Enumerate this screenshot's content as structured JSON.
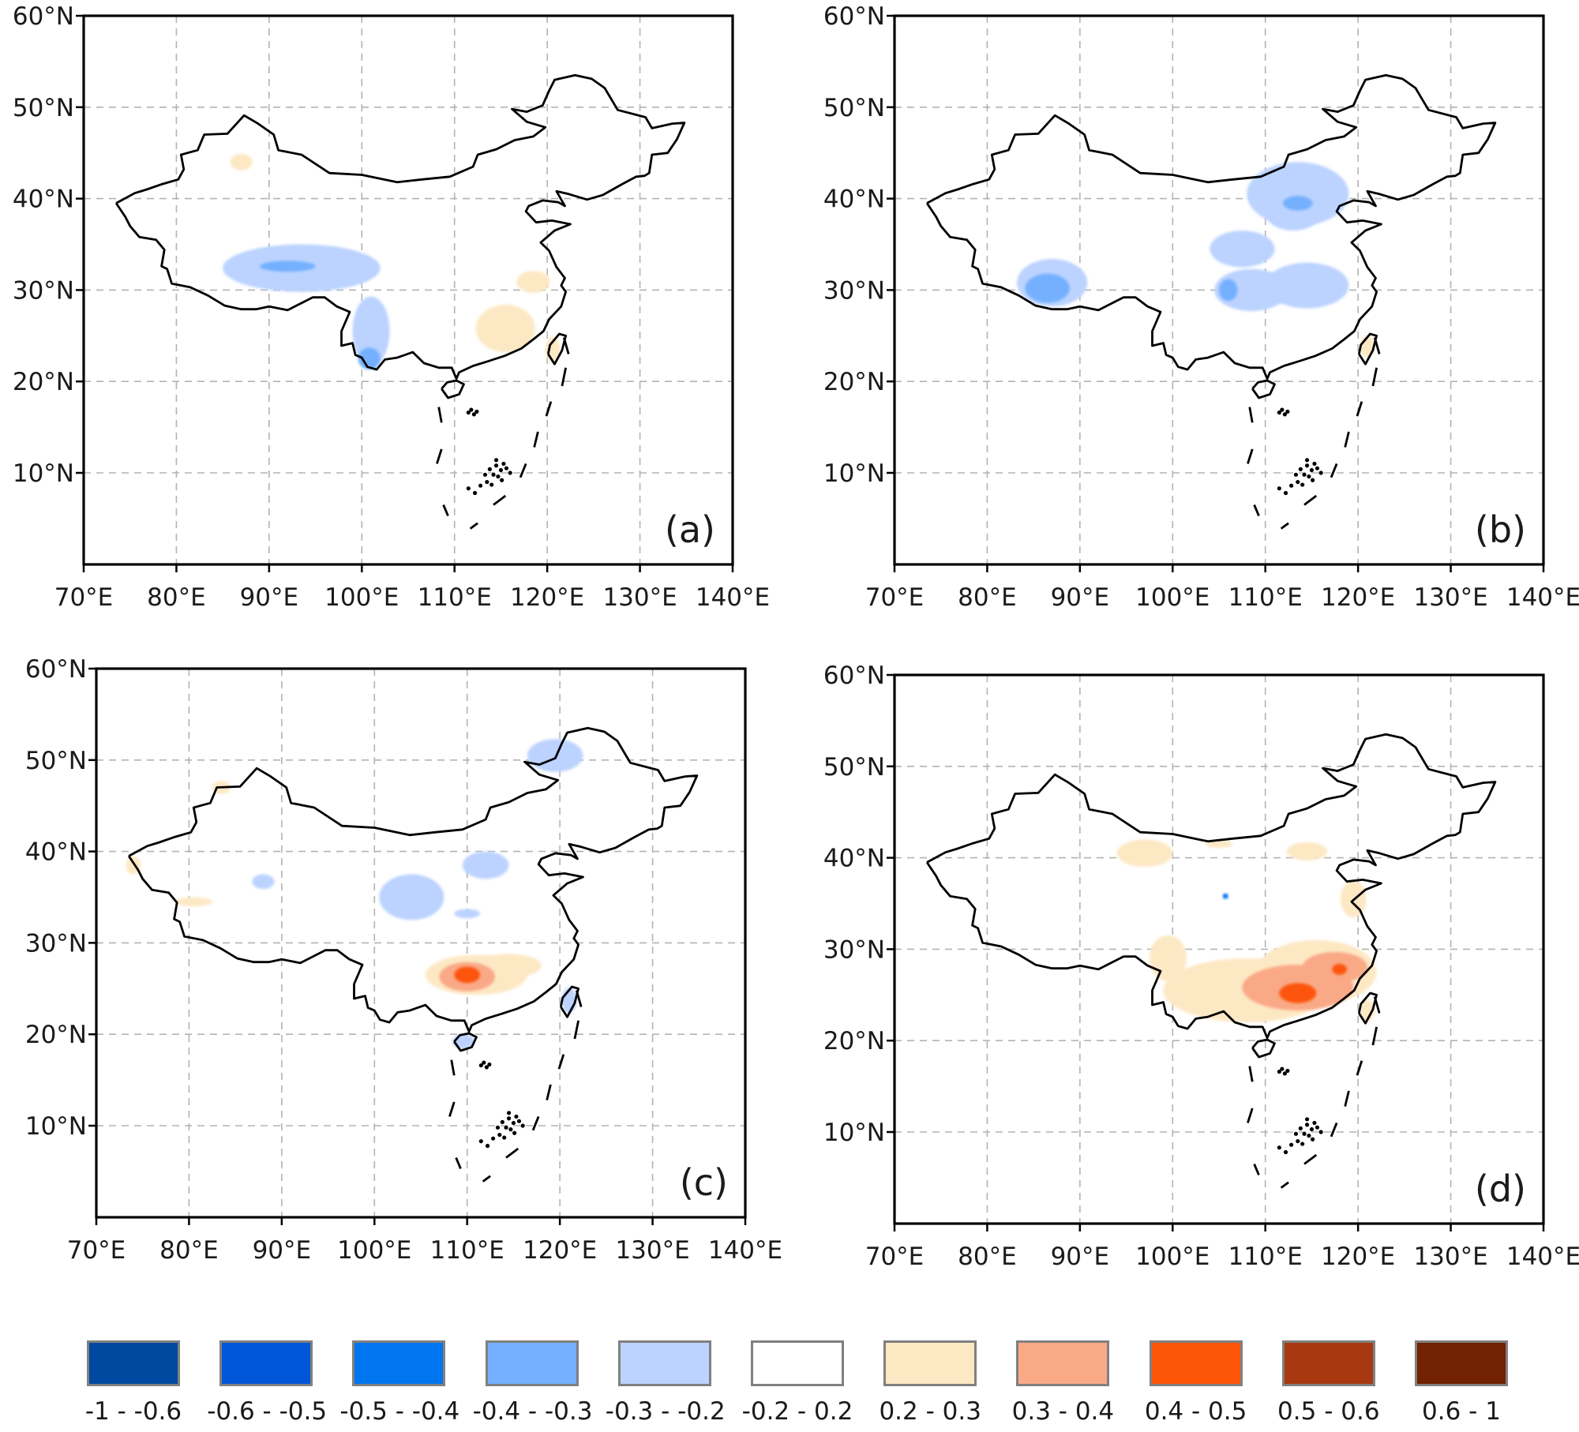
{
  "figure": {
    "x_tick_labels": [
      "70°E",
      "80°E",
      "90°E",
      "100°E",
      "110°E",
      "120°E",
      "130°E",
      "140°E"
    ],
    "y_tick_labels": [
      "60°N",
      "50°N",
      "40°N",
      "30°N",
      "20°N",
      "10°N"
    ],
    "lon_range": [
      70,
      140
    ],
    "lat_range": [
      0,
      60
    ]
  },
  "panels": [
    {
      "id": "a",
      "label": "(a)",
      "blobs": [
        {
          "lon": 93.5,
          "lat": 32.4,
          "rlon": 8.5,
          "rlat": 2.6,
          "class": "-0.3 - -0.2"
        },
        {
          "lon": 101.0,
          "lat": 25.5,
          "rlon": 2.0,
          "rlat": 3.8,
          "class": "-0.3 - -0.2"
        },
        {
          "lon": 100.8,
          "lat": 22.5,
          "rlon": 1.2,
          "rlat": 1.2,
          "class": "-0.4 - -0.3"
        },
        {
          "lon": 92.0,
          "lat": 32.6,
          "rlon": 3.0,
          "rlat": 0.6,
          "class": "-0.4 - -0.3"
        },
        {
          "lon": 115.5,
          "lat": 25.8,
          "rlon": 3.2,
          "rlat": 2.6,
          "class": "0.2 - 0.3"
        },
        {
          "lon": 118.5,
          "lat": 30.9,
          "rlon": 1.8,
          "rlat": 1.2,
          "class": "0.2 - 0.3"
        },
        {
          "lon": 87.0,
          "lat": 44.0,
          "rlon": 1.2,
          "rlat": 0.9,
          "class": "0.2 - 0.3"
        },
        {
          "lon": 120.6,
          "lat": 23.5,
          "rlon": 0.8,
          "rlat": 1.4,
          "class": "0.2 - 0.3"
        }
      ]
    },
    {
      "id": "b",
      "label": "(b)",
      "blobs": [
        {
          "lon": 113.5,
          "lat": 40.5,
          "rlon": 5.5,
          "rlat": 3.5,
          "class": "-0.3 - -0.2"
        },
        {
          "lon": 113.0,
          "lat": 38.5,
          "rlon": 3.0,
          "rlat": 2.0,
          "class": "-0.3 - -0.2"
        },
        {
          "lon": 107.5,
          "lat": 34.5,
          "rlon": 3.5,
          "rlat": 2.0,
          "class": "-0.3 - -0.2"
        },
        {
          "lon": 108.5,
          "lat": 30.0,
          "rlon": 4.0,
          "rlat": 2.3,
          "class": "-0.3 - -0.2"
        },
        {
          "lon": 114.5,
          "lat": 30.5,
          "rlon": 4.5,
          "rlat": 2.5,
          "class": "-0.3 - -0.2"
        },
        {
          "lon": 87.0,
          "lat": 30.8,
          "rlon": 3.8,
          "rlat": 2.6,
          "class": "-0.3 - -0.2"
        },
        {
          "lon": 86.5,
          "lat": 30.2,
          "rlon": 2.4,
          "rlat": 1.6,
          "class": "-0.4 - -0.3"
        },
        {
          "lon": 113.5,
          "lat": 39.5,
          "rlon": 1.6,
          "rlat": 0.8,
          "class": "-0.4 - -0.3"
        },
        {
          "lon": 106.0,
          "lat": 30.0,
          "rlon": 1.0,
          "rlat": 1.2,
          "class": "-0.4 - -0.3"
        },
        {
          "lon": 121.0,
          "lat": 23.8,
          "rlon": 0.8,
          "rlat": 1.2,
          "class": "0.2 - 0.3"
        }
      ]
    },
    {
      "id": "c",
      "label": "(c)",
      "blobs": [
        {
          "lon": 111.0,
          "lat": 26.5,
          "rlon": 5.5,
          "rlat": 2.2,
          "class": "0.2 - 0.3"
        },
        {
          "lon": 114.5,
          "lat": 27.5,
          "rlon": 3.5,
          "rlat": 1.3,
          "class": "0.2 - 0.3"
        },
        {
          "lon": 110.0,
          "lat": 26.3,
          "rlon": 3.0,
          "rlat": 1.6,
          "class": "0.3 - 0.4"
        },
        {
          "lon": 110.0,
          "lat": 26.5,
          "rlon": 1.4,
          "rlat": 0.9,
          "class": "0.4 - 0.5"
        },
        {
          "lon": 104.0,
          "lat": 35.0,
          "rlon": 3.5,
          "rlat": 2.5,
          "class": "-0.3 - -0.2"
        },
        {
          "lon": 112.0,
          "lat": 38.5,
          "rlon": 2.5,
          "rlat": 1.5,
          "class": "-0.3 - -0.2"
        },
        {
          "lon": 110.0,
          "lat": 33.2,
          "rlon": 1.4,
          "rlat": 0.5,
          "class": "-0.3 - -0.2"
        },
        {
          "lon": 119.5,
          "lat": 50.5,
          "rlon": 3.0,
          "rlat": 1.8,
          "class": "-0.3 - -0.2"
        },
        {
          "lon": 88.0,
          "lat": 36.7,
          "rlon": 1.2,
          "rlat": 0.8,
          "class": "-0.3 - -0.2"
        },
        {
          "lon": 121.0,
          "lat": 23.7,
          "rlon": 0.8,
          "rlat": 1.4,
          "class": "-0.3 - -0.2"
        },
        {
          "lon": 109.6,
          "lat": 19.2,
          "rlon": 1.2,
          "rlat": 0.8,
          "class": "-0.3 - -0.2"
        },
        {
          "lon": 80.5,
          "lat": 34.5,
          "rlon": 2.0,
          "rlat": 0.5,
          "class": "0.2 - 0.3"
        },
        {
          "lon": 83.5,
          "lat": 47.0,
          "rlon": 1.0,
          "rlat": 0.7,
          "class": "0.2 - 0.3"
        },
        {
          "lon": 74.0,
          "lat": 38.5,
          "rlon": 0.8,
          "rlat": 1.0,
          "class": "0.2 - 0.3"
        }
      ]
    },
    {
      "id": "d",
      "label": "(d)",
      "blobs": [
        {
          "lon": 108.0,
          "lat": 25.5,
          "rlon": 9.0,
          "rlat": 3.5,
          "class": "0.2 - 0.3"
        },
        {
          "lon": 115.5,
          "lat": 27.5,
          "rlon": 6.5,
          "rlat": 3.5,
          "class": "0.2 - 0.3"
        },
        {
          "lon": 99.5,
          "lat": 29.0,
          "rlon": 2.0,
          "rlat": 2.5,
          "class": "0.2 - 0.3"
        },
        {
          "lon": 97.0,
          "lat": 40.5,
          "rlon": 3.0,
          "rlat": 1.5,
          "class": "0.2 - 0.3"
        },
        {
          "lon": 114.5,
          "lat": 40.7,
          "rlon": 2.2,
          "rlat": 1.0,
          "class": "0.2 - 0.3"
        },
        {
          "lon": 119.5,
          "lat": 35.5,
          "rlon": 1.4,
          "rlat": 2.0,
          "class": "0.2 - 0.3"
        },
        {
          "lon": 105.0,
          "lat": 41.5,
          "rlon": 1.5,
          "rlat": 0.4,
          "class": "0.2 - 0.3"
        },
        {
          "lon": 113.5,
          "lat": 25.8,
          "rlon": 6.0,
          "rlat": 2.5,
          "class": "0.3 - 0.4"
        },
        {
          "lon": 117.5,
          "lat": 28.0,
          "rlon": 3.5,
          "rlat": 1.7,
          "class": "0.3 - 0.4"
        },
        {
          "lon": 113.5,
          "lat": 25.2,
          "rlon": 2.0,
          "rlat": 1.1,
          "class": "0.4 - 0.5"
        },
        {
          "lon": 118.0,
          "lat": 27.8,
          "rlon": 0.8,
          "rlat": 0.6,
          "class": "0.4 - 0.5"
        },
        {
          "lon": 105.7,
          "lat": 35.8,
          "rlon": 0.3,
          "rlat": 0.3,
          "class": "-0.5 - -0.4"
        },
        {
          "lon": 121.0,
          "lat": 23.3,
          "rlon": 0.8,
          "rlat": 1.2,
          "class": "0.2 - 0.3"
        }
      ]
    }
  ],
  "legend": [
    {
      "label": "-1 - -0.6",
      "color": "#0049a0"
    },
    {
      "label": "-0.6 - -0.5",
      "color": "#0055d8"
    },
    {
      "label": "-0.5 - -0.4",
      "color": "#0075f0"
    },
    {
      "label": "-0.4 - -0.3",
      "color": "#74b0ff"
    },
    {
      "label": "-0.3 - -0.2",
      "color": "#bcd3ff"
    },
    {
      "label": "-0.2 - 0.2",
      "color": "#ffffff"
    },
    {
      "label": "0.2 - 0.3",
      "color": "#fde8c4"
    },
    {
      "label": "0.3 - 0.4",
      "color": "#faa987"
    },
    {
      "label": "0.4 - 0.5",
      "color": "#fd5508"
    },
    {
      "label": "0.5 - 0.6",
      "color": "#a83810"
    },
    {
      "label": "0.6 - 1",
      "color": "#722102"
    }
  ]
}
